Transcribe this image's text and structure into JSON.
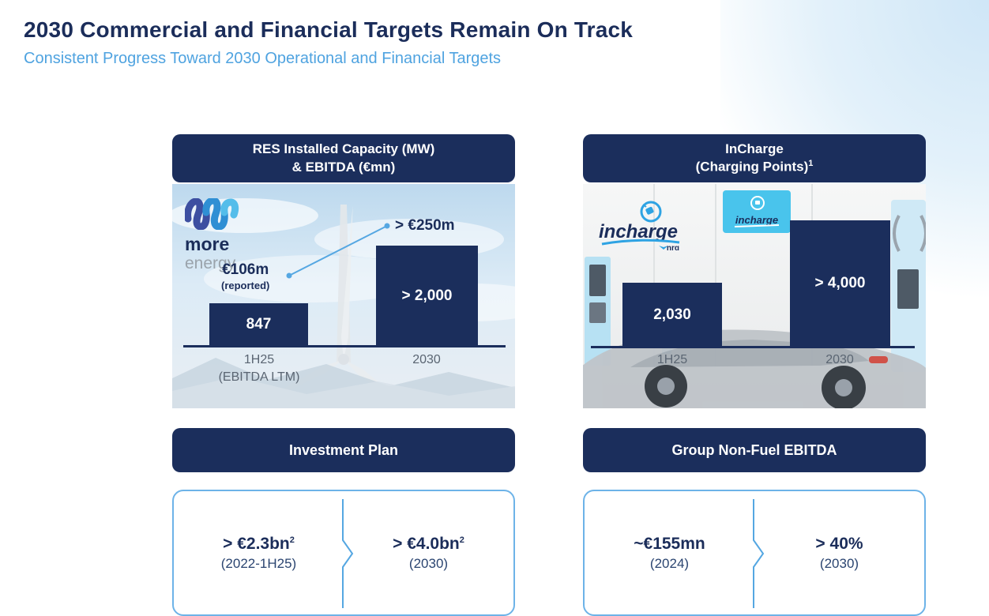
{
  "page": {
    "title": "2030 Commercial and Financial Targets Remain On Track",
    "subtitle": "Consistent Progress Toward 2030 Operational and Financial Targets"
  },
  "colors": {
    "navy": "#1b2e5c",
    "accent_blue": "#55a7e2",
    "subtitle_blue": "#4fa3e0",
    "box_border": "#6db3e8"
  },
  "logos": {
    "more_energy": {
      "line1": "more",
      "line2": "energy"
    },
    "incharge": {
      "name": "incharge",
      "partner": "nrg",
      "sign_text": "incharge"
    }
  },
  "panels": [
    {
      "header_line1": "RES Installed Capacity (MW)",
      "header_line2": "& EBITDA (€mn)",
      "header_sup": "",
      "section_header": "Investment Plan",
      "target": {
        "from": {
          "value": "> €2.3bn",
          "sup": "2",
          "period": "(2022-1H25)"
        },
        "to": {
          "value": "> €4.0bn",
          "sup": "2",
          "period": "(2030)"
        }
      }
    },
    {
      "header_line1": "InCharge",
      "header_line2": "(Charging Points)",
      "header_sup": "1",
      "section_header": "Group Non-Fuel EBITDA",
      "target": {
        "from": {
          "value": "~€155mn",
          "sup": "",
          "period": "(2024)"
        },
        "to": {
          "value": "> 40%",
          "sup": "",
          "period": "(2030)"
        }
      }
    }
  ],
  "chart_data": [
    {
      "type": "bar",
      "title": "RES Installed Capacity (MW) & EBITDA (€mn)",
      "categories": [
        "1H25 (EBITDA LTM)",
        "2030"
      ],
      "tick_lines": [
        [
          "1H25",
          "(EBITDA LTM)"
        ],
        [
          "2030",
          ""
        ]
      ],
      "values": [
        847,
        2000
      ],
      "bar_labels": [
        "847",
        "> 2,000"
      ],
      "bar_color": "#1b2e5c",
      "ylim": [
        0,
        2200
      ],
      "annotations": [
        {
          "text": "€106m",
          "subtext": "(reported)",
          "refers_to": "1H25 EBITDA reported"
        },
        {
          "text": "> €250m",
          "subtext": "",
          "refers_to": "2030 EBITDA target"
        }
      ]
    },
    {
      "type": "bar",
      "title": "InCharge (Charging Points)",
      "categories": [
        "1H25",
        "2030"
      ],
      "tick_lines": [
        [
          "1H25",
          ""
        ],
        [
          "2030",
          ""
        ]
      ],
      "values": [
        2030,
        4000
      ],
      "bar_labels": [
        "2,030",
        "> 4,000"
      ],
      "bar_color": "#1b2e5c",
      "ylim": [
        0,
        4400
      ],
      "annotations": []
    }
  ]
}
